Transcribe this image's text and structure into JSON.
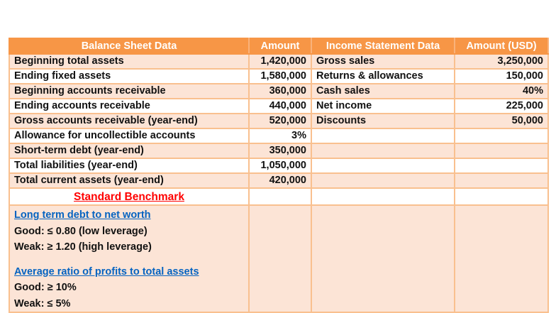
{
  "table": {
    "headers": [
      "Balance Sheet Data",
      "Amount",
      "Income Statement Data",
      "Amount (USD)"
    ],
    "rows": [
      {
        "bs_label": "Beginning total assets",
        "bs_amount": "1,420,000",
        "is_label": "Gross sales",
        "is_amount": "3,250,000"
      },
      {
        "bs_label": "Ending fixed assets",
        "bs_amount": "1,580,000",
        "is_label": "Returns & allowances",
        "is_amount": "150,000"
      },
      {
        "bs_label": "Beginning accounts receivable",
        "bs_amount": "360,000",
        "is_label": "Cash sales",
        "is_amount": "40%"
      },
      {
        "bs_label": "Ending accounts receivable",
        "bs_amount": "440,000",
        "is_label": "Net income",
        "is_amount": "225,000"
      },
      {
        "bs_label": "Gross accounts receivable (year-end)",
        "bs_amount": "520,000",
        "is_label": "Discounts",
        "is_amount": "50,000"
      },
      {
        "bs_label": "Allowance for uncollectible accounts",
        "bs_amount": "3%",
        "is_label": "",
        "is_amount": ""
      },
      {
        "bs_label": "Short-term debt (year-end)",
        "bs_amount": "350,000",
        "is_label": "",
        "is_amount": ""
      },
      {
        "bs_label": "Total liabilities (year-end)",
        "bs_amount": "1,050,000",
        "is_label": "",
        "is_amount": ""
      },
      {
        "bs_label": "Total current assets (year-end)",
        "bs_amount": "420,000",
        "is_label": "",
        "is_amount": ""
      }
    ]
  },
  "benchmark": {
    "title": "Standard Benchmark",
    "sections": [
      {
        "heading": "Long term debt to net worth",
        "lines": [
          "Good: ≤ 0.80 (low leverage)",
          "Weak: ≥ 1.20 (high leverage)"
        ]
      },
      {
        "heading": "Average ratio of profits to total assets",
        "lines": [
          "Good: ≥ 10%",
          "Weak: ≤ 5%"
        ]
      }
    ]
  },
  "colors": {
    "header_bg": "#f79646",
    "band_bg": "#fce4d6",
    "border": "#f9c08f",
    "benchmark_title": "#ff0000",
    "link": "#0563c1"
  }
}
